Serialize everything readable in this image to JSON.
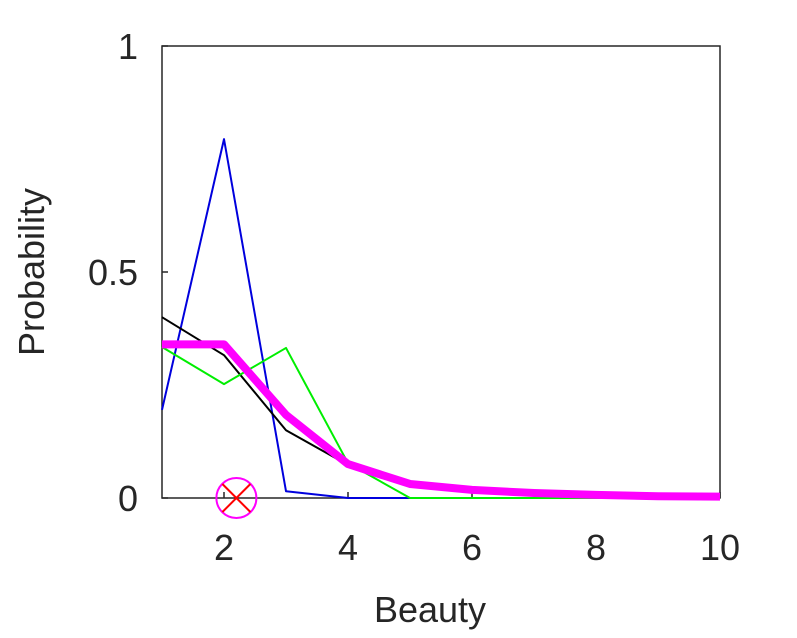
{
  "chart_data": {
    "type": "line",
    "x_label": "Beauty",
    "y_label": "Probability",
    "x": [
      1,
      2,
      3,
      4,
      5,
      6,
      7,
      8,
      9,
      10
    ],
    "series": [
      {
        "color": "#0000dd",
        "width": 2,
        "values": [
          0.195,
          0.794,
          0.015,
          0,
          0,
          0,
          0,
          0,
          0,
          0
        ]
      },
      {
        "color": "#000000",
        "width": 2,
        "values": [
          0.4,
          0.316,
          0.15,
          0.073,
          0.031,
          0.018,
          0.01,
          0.006,
          0.003,
          0.002
        ]
      },
      {
        "color": "#00ee00",
        "width": 2,
        "values": [
          0.334,
          0.252,
          0.332,
          0.077,
          0,
          0,
          0,
          0,
          0,
          0
        ]
      },
      {
        "color": "#ff00ff",
        "width": 8,
        "values": [
          0.34,
          0.34,
          0.184,
          0.075,
          0.031,
          0.018,
          0.011,
          0.007,
          0.004,
          0.003
        ]
      }
    ],
    "marker": {
      "x": 2.2,
      "y": 0,
      "circle_color": "#ff00ff",
      "cross_color": "#ff0000"
    },
    "xlim": [
      1,
      10
    ],
    "ylim": [
      0,
      1
    ],
    "xticks": [
      2,
      4,
      6,
      8,
      10
    ],
    "yticks": [
      0,
      0.5,
      1
    ],
    "grid": false
  }
}
